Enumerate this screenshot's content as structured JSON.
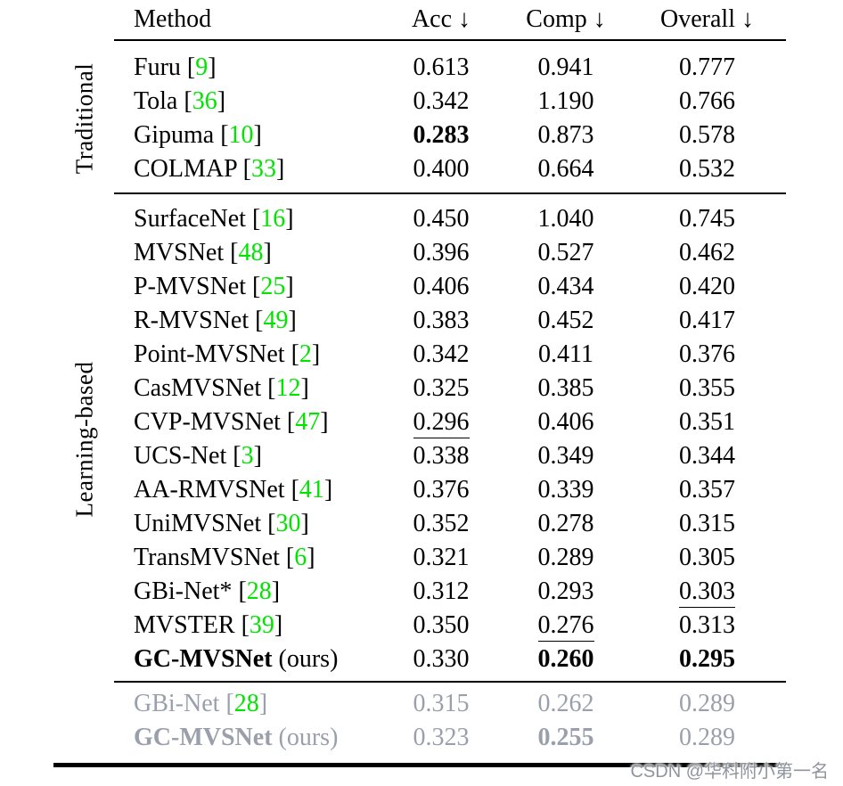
{
  "page": {
    "watermark": "CSDN @华科附小第一名"
  },
  "colors": {
    "citation_green": "#00e400",
    "muted_gray": "#9aa0ab",
    "watermark_gray": "#8f959e",
    "rule_black": "#000000"
  },
  "header": {
    "method": "Method",
    "acc": "Acc ↓",
    "comp": "Comp ↓",
    "overall": "Overall ↓"
  },
  "groups": [
    {
      "label": "Traditional",
      "muted": false,
      "rows": [
        {
          "name": "Furu",
          "ref": "9",
          "acc": "0.613",
          "comp": "0.941",
          "overall": "0.777"
        },
        {
          "name": "Tola",
          "ref": "36",
          "acc": "0.342",
          "comp": "1.190",
          "overall": "0.766"
        },
        {
          "name": "Gipuma",
          "ref": "10",
          "acc": "0.283",
          "acc_style": "bold",
          "comp": "0.873",
          "overall": "0.578"
        },
        {
          "name": "COLMAP",
          "ref": "33",
          "acc": "0.400",
          "comp": "0.664",
          "overall": "0.532"
        }
      ]
    },
    {
      "label": "Learning-based",
      "muted": false,
      "rows": [
        {
          "name": "SurfaceNet",
          "ref": "16",
          "acc": "0.450",
          "comp": "1.040",
          "overall": "0.745"
        },
        {
          "name": "MVSNet",
          "ref": "48",
          "acc": "0.396",
          "comp": "0.527",
          "overall": "0.462"
        },
        {
          "name": "P-MVSNet",
          "ref": "25",
          "acc": "0.406",
          "comp": "0.434",
          "overall": "0.420"
        },
        {
          "name": "R-MVSNet",
          "ref": "49",
          "acc": "0.383",
          "comp": "0.452",
          "overall": "0.417"
        },
        {
          "name": "Point-MVSNet",
          "ref": "2",
          "acc": "0.342",
          "comp": "0.411",
          "overall": "0.376"
        },
        {
          "name": "CasMVSNet",
          "ref": "12",
          "acc": "0.325",
          "comp": "0.385",
          "overall": "0.355"
        },
        {
          "name": "CVP-MVSNet",
          "ref": "47",
          "acc": "0.296",
          "acc_style": "underline",
          "comp": "0.406",
          "overall": "0.351"
        },
        {
          "name": "UCS-Net",
          "ref": "3",
          "acc": "0.338",
          "comp": "0.349",
          "overall": "0.344"
        },
        {
          "name": "AA-RMVSNet",
          "ref": "41",
          "acc": "0.376",
          "comp": "0.339",
          "overall": "0.357"
        },
        {
          "name": "UniMVSNet",
          "ref": "30",
          "acc": "0.352",
          "comp": "0.278",
          "overall": "0.315"
        },
        {
          "name": "TransMVSNet",
          "ref": "6",
          "acc": "0.321",
          "comp": "0.289",
          "overall": "0.305"
        },
        {
          "name": "GBi-Net*",
          "ref": "28",
          "acc": "0.312",
          "comp": "0.293",
          "overall": "0.303",
          "overall_style": "underline"
        },
        {
          "name": "MVSTER",
          "ref": "39",
          "acc": "0.350",
          "comp": "0.276",
          "comp_style": "underline",
          "overall": "0.313"
        },
        {
          "name": "GC-MVSNet",
          "name_bold": true,
          "suffix": "(ours)",
          "acc": "0.330",
          "comp": "0.260",
          "comp_style": "bold",
          "overall": "0.295",
          "overall_style": "bold"
        }
      ]
    },
    {
      "label": "",
      "muted": true,
      "rows": [
        {
          "name": "GBi-Net",
          "ref": "28",
          "acc": "0.315",
          "comp": "0.262",
          "overall": "0.289"
        },
        {
          "name": "GC-MVSNet",
          "name_bold": true,
          "suffix": "(ours)",
          "acc": "0.323",
          "comp": "0.255",
          "comp_style": "bold",
          "overall": "0.289"
        }
      ]
    }
  ]
}
